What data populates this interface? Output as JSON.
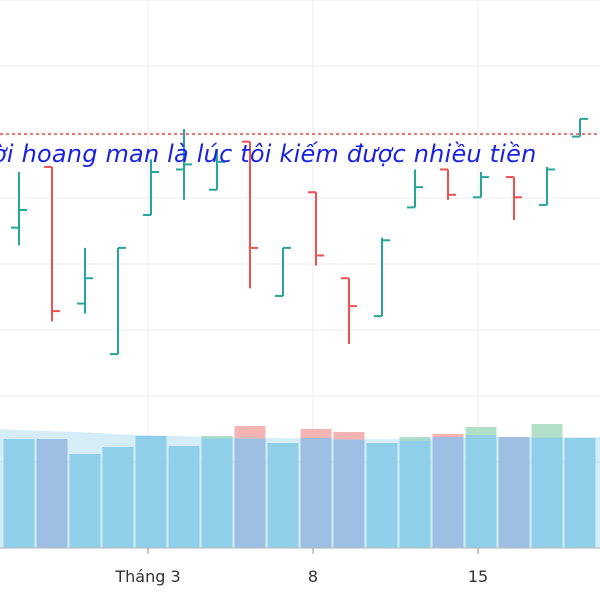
{
  "chart_data": {
    "type": "ohlc",
    "annotation": "ời hoang man là lúc tôi kiếm được nhiều tiền",
    "x_ticks": [
      {
        "label": "Tháng 3",
        "index": 4
      },
      {
        "label": "8",
        "index": 9
      },
      {
        "label": "15",
        "index": 14
      }
    ],
    "reference_line": {
      "price": 387,
      "color": "#e53935",
      "style": "dashed"
    },
    "colors": {
      "up": "#26a69a",
      "down": "#ef5350",
      "volume_base": "#87ceeb",
      "volume_up": "#b2dfc8",
      "volume_down": "#f4b4b4",
      "volume_ma": "#87ceeb"
    },
    "bars": [
      {
        "open": 350,
        "high": 372,
        "low": 343,
        "close": 357,
        "direction": "up"
      },
      {
        "open": 374,
        "high": 374,
        "low": 313,
        "close": 317,
        "direction": "down"
      },
      {
        "open": 320,
        "high": 342,
        "low": 316,
        "close": 330,
        "direction": "up"
      },
      {
        "open": 300,
        "high": 342,
        "low": 300,
        "close": 342,
        "direction": "up"
      },
      {
        "open": 355,
        "high": 377,
        "low": 355,
        "close": 372,
        "direction": "up"
      },
      {
        "open": 373,
        "high": 389,
        "low": 361,
        "close": 375,
        "direction": "up"
      },
      {
        "open": 365,
        "high": 381,
        "low": 365,
        "close": 376,
        "direction": "up"
      },
      {
        "open": 384,
        "high": 384,
        "low": 326,
        "close": 342,
        "direction": "down"
      },
      {
        "open": 323,
        "high": 342,
        "low": 323,
        "close": 342,
        "direction": "up"
      },
      {
        "open": 364,
        "high": 364,
        "low": 335,
        "close": 339,
        "direction": "down"
      },
      {
        "open": 330,
        "high": 330,
        "low": 304,
        "close": 319,
        "direction": "down"
      },
      {
        "open": 315,
        "high": 346,
        "low": 315,
        "close": 345,
        "direction": "up"
      },
      {
        "open": 358,
        "high": 373,
        "low": 358,
        "close": 366,
        "direction": "up"
      },
      {
        "open": 373,
        "high": 373,
        "low": 361,
        "close": 363,
        "direction": "down"
      },
      {
        "open": 362,
        "high": 372,
        "low": 362,
        "close": 370,
        "direction": "up"
      },
      {
        "open": 370,
        "high": 370,
        "low": 353,
        "close": 362,
        "direction": "down"
      },
      {
        "open": 359,
        "high": 374,
        "low": 359,
        "close": 373,
        "direction": "up"
      },
      {
        "open": 386,
        "high": 393,
        "low": 386,
        "close": 393,
        "direction": "up"
      }
    ],
    "volumes": [
      {
        "base": 109,
        "extra": 0,
        "direction": "up"
      },
      {
        "base": 109,
        "extra": 0,
        "direction": "down"
      },
      {
        "base": 94,
        "extra": 0,
        "direction": "up"
      },
      {
        "base": 101,
        "extra": 0,
        "direction": "up"
      },
      {
        "base": 112,
        "extra": 0,
        "direction": "up"
      },
      {
        "base": 102,
        "extra": 0,
        "direction": "up"
      },
      {
        "base": 109,
        "extra": 3,
        "direction": "up"
      },
      {
        "base": 109,
        "extra": 13,
        "direction": "down"
      },
      {
        "base": 105,
        "extra": 0,
        "direction": "up"
      },
      {
        "base": 110,
        "extra": 9,
        "direction": "down"
      },
      {
        "base": 108,
        "extra": 8,
        "direction": "down"
      },
      {
        "base": 105,
        "extra": 0,
        "direction": "up"
      },
      {
        "base": 107,
        "extra": 4,
        "direction": "up"
      },
      {
        "base": 111,
        "extra": 3,
        "direction": "down"
      },
      {
        "base": 113,
        "extra": 8,
        "direction": "up"
      },
      {
        "base": 111,
        "extra": 0,
        "direction": "down"
      },
      {
        "base": 110,
        "extra": 14,
        "direction": "up"
      },
      {
        "base": 110,
        "extra": 0,
        "direction": "up"
      }
    ],
    "volume_ma": [
      118,
      116,
      115,
      113,
      112,
      111,
      110,
      110,
      109,
      109,
      108,
      108,
      108,
      109,
      110,
      110,
      110,
      110
    ],
    "price_range": [
      270,
      440
    ],
    "volume_range": [
      0,
      140
    ],
    "grid": true
  }
}
